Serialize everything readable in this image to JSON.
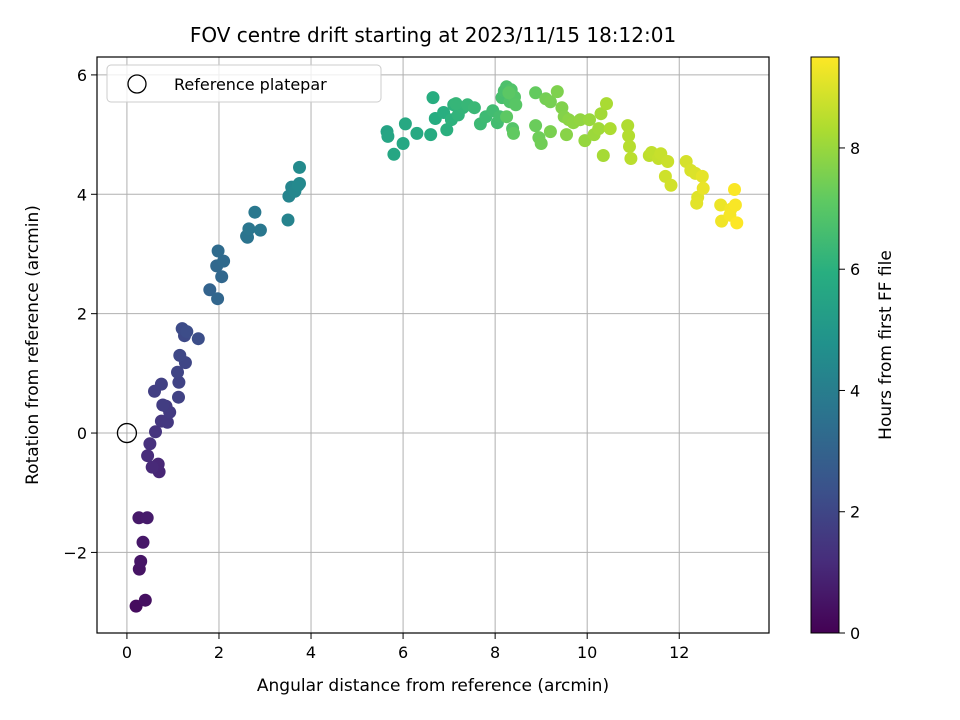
{
  "chart_data": {
    "type": "scatter",
    "title": "FOV centre drift starting at 2023/11/15 18:12:01",
    "xlabel": "Angular distance from reference (arcmin)",
    "ylabel": "Rotation from reference (arcmin)",
    "colorbar_label": "Hours from first FF file",
    "xlim": [
      -0.65,
      13.95
    ],
    "ylim": [
      -3.35,
      6.3
    ],
    "x_ticks": [
      0,
      2,
      4,
      6,
      8,
      10,
      12
    ],
    "y_ticks": [
      -2,
      0,
      2,
      4,
      6
    ],
    "colorbar_range": [
      0,
      9.5
    ],
    "colorbar_ticks": [
      0,
      2,
      4,
      6,
      8
    ],
    "colormap": "viridis",
    "grid": true,
    "legend_position": "top-left",
    "reference": {
      "name": "Reference platepar",
      "x": 0,
      "y": 0
    },
    "points": [
      [
        0.2,
        -2.9,
        0.3
      ],
      [
        0.4,
        -2.8,
        0.4
      ],
      [
        0.27,
        -2.28,
        0.5
      ],
      [
        0.3,
        -2.15,
        0.55
      ],
      [
        0.35,
        -1.83,
        0.6
      ],
      [
        0.26,
        -1.42,
        0.65
      ],
      [
        0.44,
        -1.42,
        0.7
      ],
      [
        0.7,
        -0.65,
        1.0
      ],
      [
        0.68,
        -0.52,
        1.05
      ],
      [
        0.55,
        -0.57,
        1.1
      ],
      [
        0.45,
        -0.38,
        1.2
      ],
      [
        0.5,
        -0.18,
        1.3
      ],
      [
        0.62,
        0.02,
        1.4
      ],
      [
        0.75,
        0.2,
        1.5
      ],
      [
        0.88,
        0.18,
        1.55
      ],
      [
        0.93,
        0.35,
        1.6
      ],
      [
        0.85,
        0.45,
        1.65
      ],
      [
        0.78,
        0.47,
        1.7
      ],
      [
        0.6,
        0.7,
        1.75
      ],
      [
        0.75,
        0.82,
        1.8
      ],
      [
        1.12,
        0.6,
        1.85
      ],
      [
        1.13,
        0.85,
        1.9
      ],
      [
        1.1,
        1.02,
        1.95
      ],
      [
        1.27,
        1.18,
        2.0
      ],
      [
        1.15,
        1.3,
        2.05
      ],
      [
        1.25,
        1.63,
        2.1
      ],
      [
        1.2,
        1.75,
        2.15
      ],
      [
        1.3,
        1.7,
        2.2
      ],
      [
        1.55,
        1.58,
        2.25
      ],
      [
        1.8,
        2.4,
        3.0
      ],
      [
        1.97,
        2.25,
        3.1
      ],
      [
        2.06,
        2.62,
        3.15
      ],
      [
        1.95,
        2.8,
        3.2
      ],
      [
        2.1,
        2.88,
        3.25
      ],
      [
        1.98,
        3.05,
        3.3
      ],
      [
        2.62,
        3.28,
        3.6
      ],
      [
        2.6,
        3.3,
        3.65
      ],
      [
        2.65,
        3.42,
        3.7
      ],
      [
        2.9,
        3.4,
        3.75
      ],
      [
        2.78,
        3.7,
        3.8
      ],
      [
        3.5,
        3.57,
        4.2
      ],
      [
        3.52,
        3.97,
        4.25
      ],
      [
        3.58,
        4.12,
        4.3
      ],
      [
        3.65,
        4.05,
        4.35
      ],
      [
        3.75,
        4.18,
        4.4
      ],
      [
        3.72,
        4.15,
        4.45
      ],
      [
        3.75,
        4.45,
        4.5
      ],
      [
        5.65,
        5.05,
        5.5
      ],
      [
        5.67,
        4.97,
        5.55
      ],
      [
        5.8,
        4.67,
        5.6
      ],
      [
        6.0,
        4.85,
        5.65
      ],
      [
        6.05,
        5.18,
        5.7
      ],
      [
        6.3,
        5.02,
        5.75
      ],
      [
        6.6,
        5.0,
        5.8
      ],
      [
        6.7,
        5.27,
        5.85
      ],
      [
        6.65,
        5.62,
        5.9
      ],
      [
        6.88,
        5.37,
        5.95
      ],
      [
        6.95,
        5.08,
        6.0
      ],
      [
        7.05,
        5.25,
        6.05
      ],
      [
        7.1,
        5.5,
        6.1
      ],
      [
        7.2,
        5.33,
        6.15
      ],
      [
        7.3,
        5.45,
        6.2
      ],
      [
        7.15,
        5.52,
        6.25
      ],
      [
        7.4,
        5.5,
        6.3
      ],
      [
        7.55,
        5.45,
        6.35
      ],
      [
        7.68,
        5.18,
        6.4
      ],
      [
        7.8,
        5.3,
        6.45
      ],
      [
        7.95,
        5.4,
        6.5
      ],
      [
        8.05,
        5.2,
        6.55
      ],
      [
        8.1,
        5.3,
        6.6
      ],
      [
        8.15,
        5.62,
        6.65
      ],
      [
        8.2,
        5.73,
        6.7
      ],
      [
        8.25,
        5.8,
        6.75
      ],
      [
        8.32,
        5.55,
        6.8
      ],
      [
        8.35,
        5.75,
        6.85
      ],
      [
        8.38,
        5.1,
        6.9
      ],
      [
        8.42,
        5.63,
        6.95
      ],
      [
        8.45,
        5.5,
        7.0
      ],
      [
        8.3,
        5.7,
        7.05
      ],
      [
        8.25,
        5.3,
        7.1
      ],
      [
        8.4,
        5.02,
        7.15
      ],
      [
        8.88,
        5.7,
        7.2
      ],
      [
        8.88,
        5.15,
        7.3
      ],
      [
        8.95,
        4.95,
        7.35
      ],
      [
        9.0,
        4.85,
        7.4
      ],
      [
        9.1,
        5.6,
        7.45
      ],
      [
        9.2,
        5.55,
        7.5
      ],
      [
        9.2,
        5.05,
        7.55
      ],
      [
        9.35,
        5.72,
        7.6
      ],
      [
        9.45,
        5.45,
        7.65
      ],
      [
        9.5,
        5.3,
        7.7
      ],
      [
        9.55,
        5.0,
        7.75
      ],
      [
        9.6,
        5.25,
        7.8
      ],
      [
        9.7,
        5.2,
        7.85
      ],
      [
        9.85,
        5.25,
        7.9
      ],
      [
        9.95,
        4.9,
        7.95
      ],
      [
        10.05,
        5.25,
        8.0
      ],
      [
        10.15,
        5.0,
        8.05
      ],
      [
        10.25,
        5.1,
        8.1
      ],
      [
        10.3,
        5.35,
        8.15
      ],
      [
        10.35,
        4.65,
        8.2
      ],
      [
        10.42,
        5.52,
        8.25
      ],
      [
        10.5,
        5.1,
        8.3
      ],
      [
        10.88,
        5.15,
        8.35
      ],
      [
        10.9,
        4.98,
        8.4
      ],
      [
        10.92,
        4.8,
        8.45
      ],
      [
        10.95,
        4.6,
        8.5
      ],
      [
        11.35,
        4.65,
        8.55
      ],
      [
        11.4,
        4.7,
        8.6
      ],
      [
        11.55,
        4.6,
        8.65
      ],
      [
        11.6,
        4.68,
        8.7
      ],
      [
        11.75,
        4.55,
        8.75
      ],
      [
        11.7,
        4.3,
        8.8
      ],
      [
        11.82,
        4.15,
        8.85
      ],
      [
        12.15,
        4.55,
        8.9
      ],
      [
        12.25,
        4.4,
        8.95
      ],
      [
        12.35,
        4.35,
        9.0
      ],
      [
        12.4,
        3.95,
        9.05
      ],
      [
        12.38,
        3.85,
        9.1
      ],
      [
        12.5,
        4.3,
        9.15
      ],
      [
        12.52,
        4.1,
        9.2
      ],
      [
        12.9,
        3.82,
        9.25
      ],
      [
        12.92,
        3.55,
        9.3
      ],
      [
        13.12,
        3.75,
        9.35
      ],
      [
        13.1,
        3.65,
        9.4
      ],
      [
        13.22,
        3.82,
        9.42
      ],
      [
        13.2,
        4.08,
        9.45
      ],
      [
        13.25,
        3.52,
        9.5
      ]
    ]
  }
}
